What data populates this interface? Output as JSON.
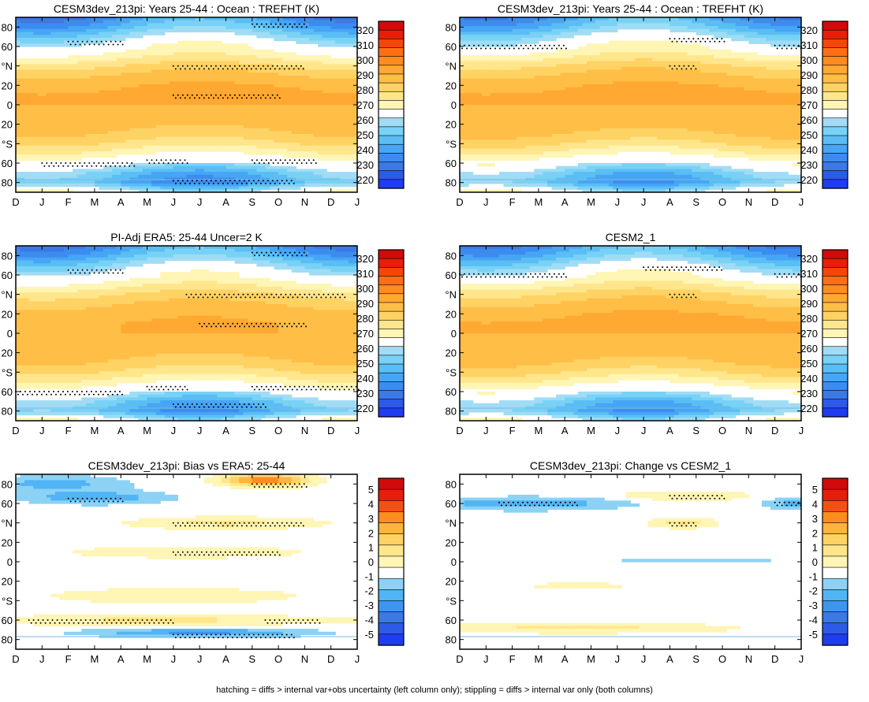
{
  "footer": "hatching = diffs > internal var+obs uncertainty (left column only); stippling = diffs > internal var only (both columns)",
  "colors": {
    "abs_levels": [
      "#1e3cf0",
      "#2d5ae6",
      "#3c78e6",
      "#3c8cf0",
      "#46a5f5",
      "#5abef5",
      "#78d2f5",
      "#a0dcf5",
      "#ffffff",
      "#fff5b4",
      "#ffe68c",
      "#ffd264",
      "#ffbe46",
      "#ffa832",
      "#ff8c1e",
      "#ff6e14",
      "#f5460a",
      "#e61e0a",
      "#d20a0a"
    ],
    "diff_levels": [
      "#1e3cf0",
      "#2d5ae6",
      "#3c78e6",
      "#3c96f0",
      "#50b4f5",
      "#8cd2f5",
      "#ffffff",
      "#fff5b4",
      "#ffe68c",
      "#ffd264",
      "#ffb43c",
      "#ff8c1e",
      "#f55014",
      "#e61e0a",
      "#d20a0a"
    ]
  },
  "chart_data": [
    {
      "type": "heatmap",
      "title": "CESM3dev_213pi: Years 25-44 : Ocean : TREFHT (K)",
      "kind": "abs",
      "x_ticks": [
        "D",
        "J",
        "F",
        "M",
        "A",
        "M",
        "J",
        "J",
        "A",
        "S",
        "O",
        "N",
        "D",
        "J"
      ],
      "y_ticks": [
        "80",
        "60",
        "°N",
        "20",
        "0",
        "20",
        "°S",
        "60",
        "80"
      ],
      "ylim": [
        -90,
        90
      ],
      "colorbar_labels": [
        "320",
        "310",
        "300",
        "290",
        "280",
        "270",
        "260",
        "250",
        "240",
        "230",
        "220"
      ],
      "profile_lat": [
        -90,
        -80,
        -70,
        -60,
        -50,
        -40,
        -30,
        -20,
        -10,
        0,
        10,
        20,
        30,
        40,
        50,
        60,
        70,
        80,
        90
      ],
      "profile_val": [
        271,
        250,
        255,
        268,
        277,
        284,
        289,
        292,
        294,
        295,
        296,
        294,
        291,
        285,
        278,
        272,
        262,
        252,
        245
      ],
      "seasonal_amp": 5,
      "warm_core": 1,
      "stipple": [
        {
          "lat": 65,
          "m0": 2.0,
          "m1": 4.0
        },
        {
          "lat": 83,
          "m0": 9.0,
          "m1": 11.0
        },
        {
          "lat": 40,
          "m0": 6.0,
          "m1": 11.0
        },
        {
          "lat": 10,
          "m0": 6.0,
          "m1": 10.0
        },
        {
          "lat": -60,
          "m0": 1.0,
          "m1": 4.5
        },
        {
          "lat": -57,
          "m0": 5.0,
          "m1": 6.5
        },
        {
          "lat": -57,
          "m0": 9.0,
          "m1": 11.5
        },
        {
          "lat": -78,
          "m0": 6.0,
          "m1": 10.5
        }
      ]
    },
    {
      "type": "heatmap",
      "title": "CESM3dev_213pi: Years 25-44 : Ocean : TREFHT (K)",
      "kind": "abs",
      "x_ticks": [
        "D",
        "J",
        "F",
        "M",
        "A",
        "M",
        "J",
        "J",
        "A",
        "S",
        "O",
        "N",
        "D",
        "J"
      ],
      "y_ticks": [
        "80",
        "60",
        "°N",
        "20",
        "0",
        "20",
        "°S",
        "60",
        "80"
      ],
      "ylim": [
        -90,
        90
      ],
      "colorbar_labels": [
        "320",
        "310",
        "300",
        "290",
        "280",
        "270",
        "260",
        "250",
        "240",
        "230",
        "220"
      ],
      "profile_lat": [
        -90,
        -80,
        -70,
        -60,
        -50,
        -40,
        -30,
        -20,
        -10,
        0,
        10,
        20,
        30,
        40,
        50,
        60,
        70,
        80,
        90
      ],
      "profile_val": [
        271,
        252,
        257,
        269,
        278,
        285,
        290,
        293,
        294,
        295,
        296,
        294,
        291,
        286,
        279,
        273,
        264,
        254,
        247
      ],
      "seasonal_amp": 5,
      "warm_core": 1,
      "stipple": [
        {
          "lat": 61,
          "m0": 0.0,
          "m1": 4.0
        },
        {
          "lat": 61,
          "m0": 12.0,
          "m1": 13.0
        },
        {
          "lat": 68,
          "m0": 8.0,
          "m1": 10.0
        },
        {
          "lat": 40,
          "m0": 8.0,
          "m1": 9.0
        }
      ]
    },
    {
      "type": "heatmap",
      "title": "PI-Adj ERA5: 25-44 Uncer=2 K",
      "kind": "abs",
      "x_ticks": [
        "D",
        "J",
        "F",
        "M",
        "A",
        "M",
        "J",
        "J",
        "A",
        "S",
        "O",
        "N",
        "D",
        "J"
      ],
      "y_ticks": [
        "80",
        "60",
        "°N",
        "20",
        "0",
        "20",
        "°S",
        "60",
        "80"
      ],
      "ylim": [
        -90,
        90
      ],
      "colorbar_labels": [
        "320",
        "310",
        "300",
        "290",
        "280",
        "270",
        "260",
        "250",
        "240",
        "230",
        "220"
      ],
      "profile_lat": [
        -90,
        -80,
        -70,
        -60,
        -50,
        -40,
        -30,
        -20,
        -10,
        0,
        10,
        20,
        30,
        40,
        50,
        60,
        70,
        80,
        90
      ],
      "profile_val": [
        271,
        251,
        256,
        268,
        277,
        284,
        289,
        292,
        294,
        295,
        295,
        293,
        290,
        285,
        278,
        271,
        262,
        252,
        245
      ],
      "seasonal_amp": 5,
      "warm_core": 0,
      "stipple": [
        {
          "lat": 65,
          "m0": 2.0,
          "m1": 4.0
        },
        {
          "lat": 83,
          "m0": 9.0,
          "m1": 11.0
        },
        {
          "lat": 40,
          "m0": 6.5,
          "m1": 12.5
        },
        {
          "lat": 10,
          "m0": 7.0,
          "m1": 11.0
        },
        {
          "lat": -60,
          "m0": 0.0,
          "m1": 4.0
        },
        {
          "lat": -55,
          "m0": 5.0,
          "m1": 6.5
        },
        {
          "lat": -55,
          "m0": 9.0,
          "m1": 13.0
        },
        {
          "lat": -73,
          "m0": 6.0,
          "m1": 9.5
        }
      ]
    },
    {
      "type": "heatmap",
      "title": "CESM2_1",
      "kind": "abs",
      "x_ticks": [
        "D",
        "J",
        "F",
        "M",
        "A",
        "M",
        "J",
        "J",
        "A",
        "S",
        "O",
        "N",
        "D",
        "J"
      ],
      "y_ticks": [
        "80",
        "60",
        "°N",
        "20",
        "0",
        "20",
        "°S",
        "60",
        "80"
      ],
      "ylim": [
        -90,
        90
      ],
      "colorbar_labels": [
        "320",
        "310",
        "300",
        "290",
        "280",
        "270",
        "260",
        "250",
        "240",
        "230",
        "220"
      ],
      "profile_lat": [
        -90,
        -80,
        -70,
        -60,
        -50,
        -40,
        -30,
        -20,
        -10,
        0,
        10,
        20,
        30,
        40,
        50,
        60,
        70,
        80,
        90
      ],
      "profile_val": [
        271,
        252,
        257,
        269,
        278,
        285,
        290,
        293,
        294,
        295,
        296,
        294,
        291,
        286,
        279,
        272,
        263,
        253,
        246
      ],
      "seasonal_amp": 5,
      "warm_core": 1,
      "stipple": [
        {
          "lat": 61,
          "m0": 0.0,
          "m1": 4.0
        },
        {
          "lat": 61,
          "m0": 12.0,
          "m1": 13.0
        },
        {
          "lat": 68,
          "m0": 7.0,
          "m1": 10.0
        },
        {
          "lat": 40,
          "m0": 8.0,
          "m1": 9.0
        }
      ]
    },
    {
      "type": "heatmap",
      "title": "CESM3dev_213pi: Bias vs ERA5: 25-44",
      "kind": "diff",
      "x_ticks": [
        "D",
        "J",
        "F",
        "M",
        "A",
        "M",
        "J",
        "J",
        "A",
        "S",
        "O",
        "N",
        "D",
        "J"
      ],
      "y_ticks": [
        "80",
        "60",
        "°N",
        "20",
        "0",
        "20",
        "°S",
        "60",
        "80"
      ],
      "ylim": [
        -90,
        90
      ],
      "colorbar_labels": [
        "5",
        "4",
        "3",
        "2",
        "1",
        "0",
        "-1",
        "-2",
        "-3",
        "-4",
        "-5"
      ],
      "blobs": [
        {
          "lat": 84,
          "month": 9.5,
          "dlat": 6,
          "dm": 1.5,
          "amp": 5.5
        },
        {
          "lat": 66,
          "month": 3.0,
          "dlat": 6,
          "dm": 2.5,
          "amp": -2.5
        },
        {
          "lat": 80,
          "month": 1.5,
          "dlat": 8,
          "dm": 2.5,
          "amp": -2.0
        },
        {
          "lat": 40,
          "month": 8.0,
          "dlat": 6,
          "dm": 3.5,
          "amp": 1.8
        },
        {
          "lat": 10,
          "month": 6.5,
          "dlat": 6,
          "dm": 4.5,
          "amp": 1.3
        },
        {
          "lat": -35,
          "month": 6.0,
          "dlat": 10,
          "dm": 6.0,
          "amp": 0.9
        },
        {
          "lat": -60,
          "month": 5.5,
          "dlat": 5,
          "dm": 7.0,
          "amp": 1.8
        },
        {
          "lat": -73,
          "month": 7.0,
          "dlat": 4,
          "dm": 4.0,
          "amp": -2.8
        }
      ],
      "stipple": [
        {
          "lat": 65,
          "m0": 2.0,
          "m1": 4.0
        },
        {
          "lat": 80,
          "m0": 9.0,
          "m1": 11.0
        },
        {
          "lat": 40,
          "m0": 6.0,
          "m1": 11.0
        },
        {
          "lat": 10,
          "m0": 6.0,
          "m1": 10.0
        },
        {
          "lat": -60,
          "m0": 0.5,
          "m1": 6.0
        },
        {
          "lat": -60,
          "m0": 9.5,
          "m1": 11.5
        },
        {
          "lat": -75,
          "m0": 6.0,
          "m1": 10.5
        }
      ]
    },
    {
      "type": "heatmap",
      "title": "CESM3dev_213pi: Change vs CESM2_1",
      "kind": "diff",
      "x_ticks": [
        "D",
        "J",
        "F",
        "M",
        "A",
        "M",
        "J",
        "J",
        "A",
        "S",
        "O",
        "N",
        "D",
        "J"
      ],
      "y_ticks": [
        "80",
        "60",
        "°N",
        "20",
        "0",
        "20",
        "°S",
        "60",
        "80"
      ],
      "ylim": [
        -90,
        90
      ],
      "colorbar_labels": [
        "5",
        "4",
        "3",
        "2",
        "1",
        "0",
        "-1",
        "-2",
        "-3",
        "-4",
        "-5"
      ],
      "blobs": [
        {
          "lat": 60,
          "month": 2.5,
          "dlat": 6,
          "dm": 3.5,
          "amp": -2.5
        },
        {
          "lat": 60,
          "month": 12.8,
          "dlat": 5,
          "dm": 1.2,
          "amp": -2.0
        },
        {
          "lat": 68,
          "month": 8.5,
          "dlat": 5,
          "dm": 2.5,
          "amp": 1.5
        },
        {
          "lat": 40,
          "month": 8.5,
          "dlat": 5,
          "dm": 1.2,
          "amp": 2.0
        },
        {
          "lat": 1,
          "month": 9.0,
          "dlat": 2,
          "dm": 4.5,
          "amp": -0.8
        },
        {
          "lat": -25,
          "month": 4.5,
          "dlat": 5,
          "dm": 2.5,
          "amp": 0.8
        },
        {
          "lat": -68,
          "month": 4.5,
          "dlat": 5,
          "dm": 5.5,
          "amp": 1.8
        }
      ],
      "stipple": [
        {
          "lat": 61,
          "m0": 1.5,
          "m1": 4.5
        },
        {
          "lat": 61,
          "m0": 12.0,
          "m1": 13.0
        },
        {
          "lat": 68,
          "m0": 8.0,
          "m1": 10.0
        },
        {
          "lat": 40,
          "m0": 8.0,
          "m1": 9.0
        }
      ]
    }
  ]
}
